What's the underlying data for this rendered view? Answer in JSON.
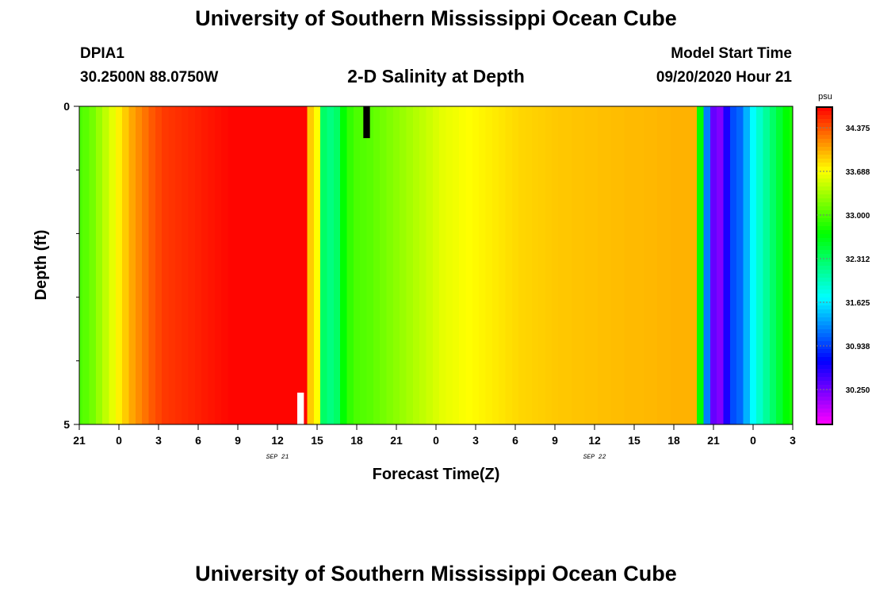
{
  "header": {
    "title": "University of Southern Mississippi Ocean Cube",
    "station": "DPIA1",
    "coordinates": "30.2500N 88.0750W",
    "plot_title": "2-D Salinity at Depth",
    "model_start_label": "Model Start Time",
    "model_start_value": "09/20/2020 Hour 21"
  },
  "footer": {
    "title": "University of Southern Mississippi Ocean Cube"
  },
  "chart_data": {
    "type": "heatmap",
    "title": "2-D Salinity at Depth",
    "xlabel": "Forecast Time(Z)",
    "ylabel": "Depth (ft)",
    "x_range_hours": [
      0,
      54
    ],
    "y_range": [
      0,
      5
    ],
    "x_ticks": [
      "21",
      "0",
      "3",
      "6",
      "9",
      "12",
      "15",
      "18",
      "21",
      "0",
      "3",
      "6",
      "9",
      "12",
      "15",
      "18",
      "21",
      "0",
      "3"
    ],
    "date_labels": [
      {
        "text": "SEP 21",
        "hour": 15
      },
      {
        "text": "SEP 22",
        "hour": 39
      }
    ],
    "y_ticks": [
      "0",
      "5"
    ],
    "y_minor_ticks": [
      1,
      2,
      3,
      4
    ],
    "colorbar": {
      "unit": "psu",
      "min": 29.7,
      "max": 34.7,
      "labels": [
        "34.375",
        "33.688",
        "33.000",
        "32.312",
        "31.625",
        "30.938",
        "30.250"
      ]
    },
    "hours": [
      0,
      0.5,
      1,
      1.5,
      2,
      2.5,
      3,
      3.5,
      4,
      4.5,
      5,
      5.5,
      6,
      6.5,
      7,
      7.5,
      8,
      8.5,
      9,
      9.5,
      10,
      10.5,
      11,
      11.5,
      12,
      12.5,
      13,
      13.5,
      14,
      14.5,
      15,
      15.5,
      16,
      16.5,
      17,
      17.5,
      18,
      18.5,
      19,
      19.5,
      20,
      20.5,
      21,
      21.5,
      22,
      22.5,
      23,
      23.5,
      24,
      24.5,
      25,
      25.5,
      26,
      26.5,
      27,
      27.5,
      28,
      28.5,
      29,
      29.5,
      30,
      30.5,
      31,
      31.5,
      32,
      32.5,
      33,
      33.5,
      34,
      34.5,
      35,
      35.5,
      36,
      36.5,
      37,
      37.5,
      38,
      38.5,
      39,
      39.5,
      40,
      40.5,
      41,
      41.5,
      42,
      42.5,
      43,
      43.5,
      44,
      44.5,
      45,
      45.5,
      46,
      46.5,
      47,
      47.5,
      48,
      48.5,
      49,
      49.5,
      50,
      50.5,
      51,
      51.5,
      52,
      52.5,
      53,
      53.5,
      54
    ],
    "salinity_psu": [
      33.0,
      33.05,
      33.15,
      33.3,
      33.45,
      33.6,
      33.75,
      33.9,
      34.05,
      34.15,
      34.25,
      34.35,
      34.42,
      34.48,
      34.5,
      34.52,
      34.54,
      34.56,
      34.58,
      34.6,
      34.62,
      34.64,
      34.66,
      34.68,
      34.68,
      34.68,
      34.68,
      34.68,
      34.68,
      34.68,
      34.68,
      34.68,
      34.68,
      34.68,
      34.68,
      33.9,
      33.7,
      32.3,
      32.2,
      32.3,
      32.7,
      32.9,
      33.0,
      33.02,
      33.05,
      33.1,
      33.15,
      33.2,
      33.25,
      33.3,
      33.35,
      33.4,
      33.45,
      33.5,
      33.55,
      33.6,
      33.63,
      33.65,
      33.68,
      33.7,
      33.72,
      33.74,
      33.76,
      33.78,
      33.8,
      33.82,
      33.84,
      33.86,
      33.87,
      33.88,
      33.89,
      33.9,
      33.91,
      33.92,
      33.92,
      33.93,
      33.93,
      33.94,
      33.94,
      33.95,
      33.95,
      33.96,
      33.96,
      33.97,
      33.97,
      33.97,
      33.98,
      33.98,
      33.99,
      33.99,
      34.0,
      34.0,
      34.0,
      34.0,
      32.7,
      31.2,
      30.3,
      30.2,
      30.6,
      31.0,
      31.1,
      31.4,
      31.7,
      31.9,
      32.1,
      32.3,
      32.5,
      32.7,
      32.8
    ],
    "annotations": [
      {
        "type": "white-bar",
        "hour_range": [
          16.5,
          17
        ],
        "depth_range": [
          4.5,
          5
        ]
      },
      {
        "type": "black-bar",
        "hour_range": [
          21.5,
          22.0
        ],
        "depth_range": [
          0,
          0.5
        ]
      }
    ]
  }
}
